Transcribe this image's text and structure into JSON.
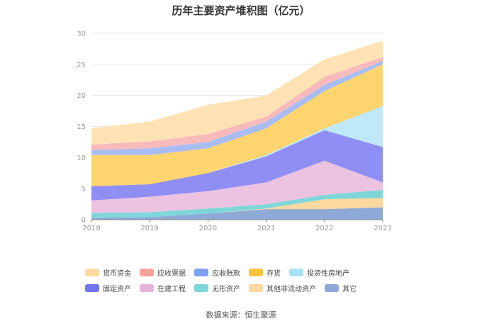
{
  "title": "历年主要资产堆积图（亿元）",
  "source_text": "数据来源：恒生聚源",
  "chart_data": {
    "type": "area",
    "stacked": true,
    "title": "历年主要资产堆积图（亿元）",
    "categories": [
      "2018",
      "2019",
      "2020",
      "2021",
      "2022",
      "2023"
    ],
    "ylim": [
      0,
      30
    ],
    "yticks": [
      0,
      5,
      10,
      15,
      20,
      25,
      30
    ],
    "grid": true,
    "legend_position": "bottom",
    "series": [
      {
        "name": "其它",
        "color": "#8fa9d6",
        "values": [
          0.3,
          0.4,
          1.0,
          1.7,
          1.7,
          2.0
        ]
      },
      {
        "name": "其他非流动资产",
        "color": "#fdd9a0",
        "values": [
          0.0,
          0.0,
          0.0,
          0.1,
          1.6,
          1.5
        ]
      },
      {
        "name": "无形资产",
        "color": "#7fd6d8",
        "values": [
          0.8,
          0.8,
          0.8,
          0.7,
          0.7,
          1.3
        ]
      },
      {
        "name": "在建工程",
        "color": "#ebc3e1",
        "values": [
          2.0,
          2.5,
          2.8,
          3.5,
          5.5,
          1.2
        ]
      },
      {
        "name": "固定资产",
        "color": "#8e8ef5",
        "values": [
          2.3,
          2.0,
          2.9,
          4.2,
          4.9,
          5.7
        ]
      },
      {
        "name": "投资性房地产",
        "color": "#bfe8fa",
        "values": [
          0.0,
          0.0,
          0.0,
          0.2,
          0.3,
          6.6
        ]
      },
      {
        "name": "存货",
        "color": "#fdd46e",
        "values": [
          5.0,
          4.7,
          4.0,
          4.3,
          6.0,
          6.7
        ]
      },
      {
        "name": "应收账款",
        "color": "#a9bdf5",
        "values": [
          0.8,
          1.1,
          1.0,
          1.1,
          1.0,
          0.6
        ]
      },
      {
        "name": "应收票据",
        "color": "#f8baba",
        "values": [
          0.9,
          1.1,
          1.3,
          0.8,
          1.3,
          0.6
        ]
      },
      {
        "name": "货币资金",
        "color": "#fde3b4",
        "values": [
          2.6,
          3.2,
          4.7,
          3.4,
          2.8,
          2.6
        ]
      }
    ]
  },
  "legend": [
    {
      "name": "货币资金",
      "color": "#fdd9a0"
    },
    {
      "name": "应收票据",
      "color": "#f7a39c"
    },
    {
      "name": "应收账款",
      "color": "#7ea0f2"
    },
    {
      "name": "存货",
      "color": "#fbc23d"
    },
    {
      "name": "投资性房地产",
      "color": "#a8e0f7"
    },
    {
      "name": "固定资产",
      "color": "#7474ee"
    },
    {
      "name": "在建工程",
      "color": "#e6b4db"
    },
    {
      "name": "无形资产",
      "color": "#7fd6d8"
    },
    {
      "name": "其他非流动资产",
      "color": "#fdd9a0"
    },
    {
      "name": "其它",
      "color": "#8fa9d6"
    }
  ]
}
